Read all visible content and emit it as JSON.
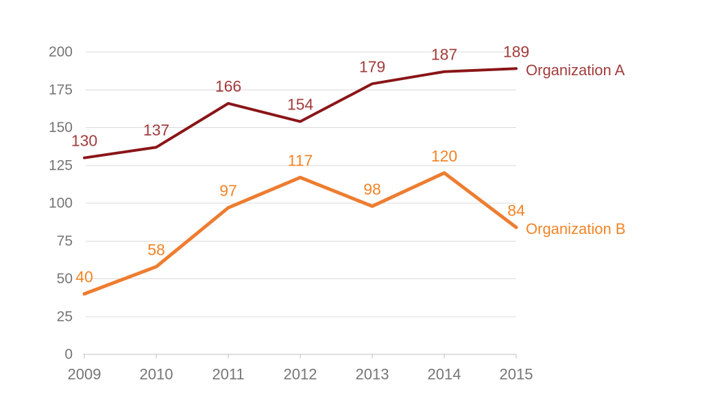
{
  "chart_data": {
    "type": "line",
    "title": "",
    "xlabel": "",
    "ylabel": "",
    "categories": [
      "2009",
      "2010",
      "2011",
      "2012",
      "2013",
      "2014",
      "2015"
    ],
    "series": [
      {
        "name": "Organization A",
        "values": [
          130,
          137,
          166,
          154,
          179,
          187,
          189
        ],
        "line_color": "#8A1518",
        "label_color": "#A23C3C",
        "stroke_width": 4
      },
      {
        "name": "Organization B",
        "values": [
          40,
          58,
          97,
          117,
          98,
          120,
          84
        ],
        "line_color": "#ED7D31",
        "label_color": "#F28427",
        "stroke_width": 5
      }
    ],
    "ylim": [
      0,
      200
    ],
    "ytick_interval": 25,
    "yticks": [
      "0",
      "25",
      "50",
      "75",
      "100",
      "125",
      "150",
      "175",
      "200"
    ],
    "grid": true,
    "data_labels": "above-points",
    "series_labels": "end-of-line",
    "legend_position": "none",
    "colors": {
      "gridline": "#D9D9D9",
      "axis_line": "#BFBFBF",
      "tick_mark": "#BFBFBF",
      "axis_text": "#757575",
      "background": "#FFFFFF"
    }
  }
}
